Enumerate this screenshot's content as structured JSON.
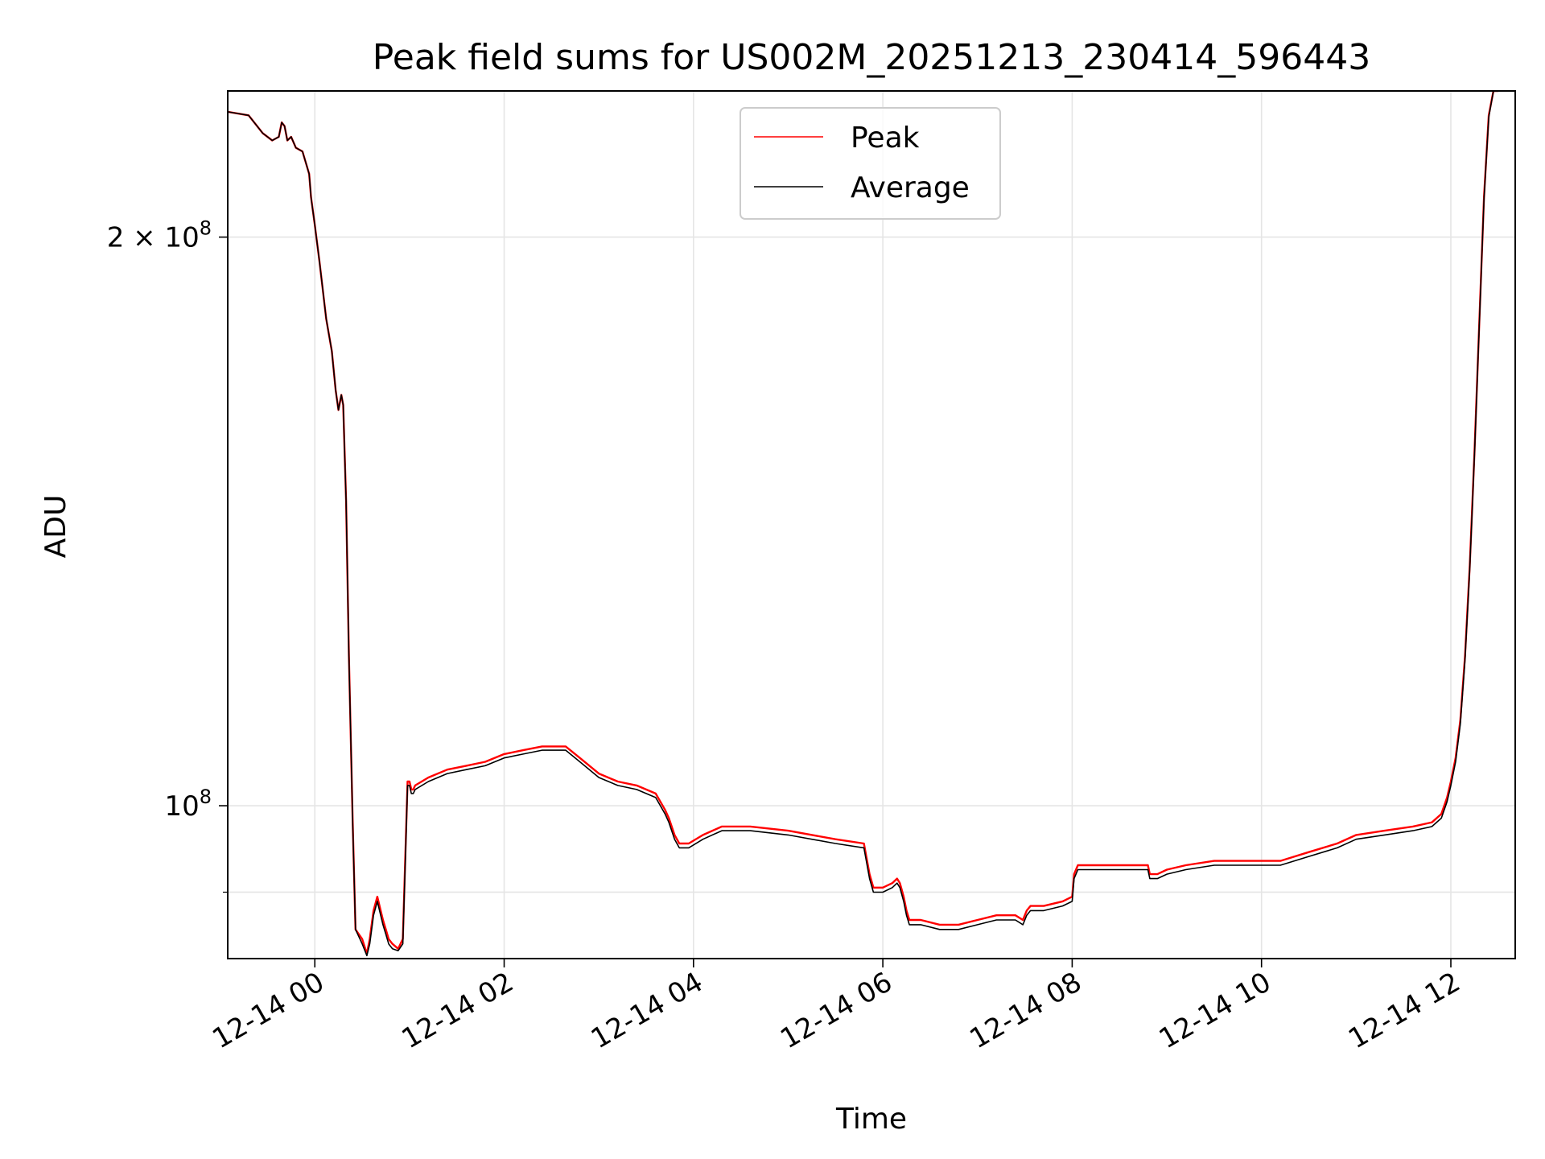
{
  "chart_data": {
    "type": "line",
    "title": "Peak field sums for US002M_20251213_230414_596443",
    "xlabel": "Time",
    "ylabel": "ADU",
    "yscale": "log",
    "ylim": [
      83000000,
      239000000
    ],
    "xlim": [
      -0.92,
      12.68
    ],
    "grid": true,
    "legend_position": "top-center",
    "x_tick_values": [
      0,
      2,
      4,
      6,
      8,
      10,
      12
    ],
    "x_tick_labels": [
      "12-14 00",
      "12-14 02",
      "12-14 04",
      "12-14 06",
      "12-14 08",
      "12-14 10",
      "12-14 12"
    ],
    "y_major_ticks": [
      {
        "value": 200000000,
        "mantissa": "2",
        "exponent": "8"
      },
      {
        "value": 100000000,
        "mantissa": "",
        "exponent": "8"
      }
    ],
    "y_minor_ticks": [
      90000000
    ],
    "x_unit": "hours since 12-14 00:00",
    "series": [
      {
        "name": "Peak",
        "color": "#ff0000",
        "x": [
          -0.92,
          -0.7,
          -0.55,
          -0.45,
          -0.38,
          -0.35,
          -0.32,
          -0.29,
          -0.25,
          -0.2,
          -0.13,
          -0.06,
          -0.04,
          0.0,
          0.05,
          0.12,
          0.18,
          0.22,
          0.25,
          0.28,
          0.3,
          0.33,
          0.36,
          0.4,
          0.43,
          0.5,
          0.55,
          0.58,
          0.62,
          0.66,
          0.72,
          0.75,
          0.78,
          0.82,
          0.88,
          0.93,
          0.98,
          1.0,
          1.02,
          1.04,
          1.06,
          1.2,
          1.4,
          1.6,
          1.8,
          2.0,
          2.2,
          2.4,
          2.6,
          2.65,
          2.8,
          3.0,
          3.2,
          3.4,
          3.6,
          3.7,
          3.74,
          3.8,
          3.85,
          3.95,
          4.1,
          4.3,
          4.6,
          5.0,
          5.5,
          5.8,
          5.86,
          5.9,
          6.0,
          6.1,
          6.15,
          6.18,
          6.22,
          6.25,
          6.28,
          6.4,
          6.6,
          6.8,
          7.0,
          7.2,
          7.4,
          7.48,
          7.52,
          7.56,
          7.7,
          7.9,
          8.0,
          8.02,
          8.06,
          8.2,
          8.5,
          8.8,
          8.82,
          8.9,
          9.0,
          9.2,
          9.5,
          9.8,
          10.0,
          10.2,
          10.5,
          10.8,
          11.0,
          11.3,
          11.6,
          11.8,
          11.9,
          11.96,
          12.0,
          12.05,
          12.1,
          12.15,
          12.2,
          12.25,
          12.3,
          12.35,
          12.4,
          12.45,
          12.5
        ],
        "y": [
          233000000,
          232000000,
          227000000,
          225000000,
          226000000,
          230000000,
          229000000,
          225000000,
          226000000,
          223000000,
          222000000,
          216000000,
          210000000,
          203000000,
          194000000,
          181000000,
          174000000,
          166000000,
          162000000,
          165000000,
          163000000,
          145000000,
          120000000,
          98000000,
          86000000,
          85000000,
          83500000,
          85000000,
          88000000,
          89500000,
          87000000,
          86000000,
          85000000,
          84500000,
          84000000,
          85000000,
          103000000,
          103000000,
          102000000,
          102000000,
          102500000,
          103500000,
          104500000,
          105000000,
          105500000,
          106500000,
          107000000,
          107500000,
          107500000,
          107500000,
          106000000,
          104000000,
          103000000,
          102500000,
          101500000,
          99500000,
          98500000,
          96500000,
          95500000,
          95500000,
          96500000,
          97500000,
          97500000,
          97000000,
          96000000,
          95500000,
          92000000,
          90500000,
          90500000,
          91000000,
          91500000,
          91000000,
          89500000,
          88000000,
          87000000,
          87000000,
          86500000,
          86500000,
          87000000,
          87500000,
          87500000,
          87000000,
          88000000,
          88500000,
          88500000,
          89000000,
          89500000,
          92000000,
          93000000,
          93000000,
          93000000,
          93000000,
          92000000,
          92000000,
          92500000,
          93000000,
          93500000,
          93500000,
          93500000,
          93500000,
          94500000,
          95500000,
          96500000,
          97000000,
          97500000,
          98000000,
          99000000,
          101000000,
          103000000,
          106000000,
          111000000,
          120000000,
          134000000,
          154000000,
          180000000,
          210000000,
          232000000,
          239000000,
          239000000
        ]
      },
      {
        "name": "Average",
        "color": "#000000",
        "x": [
          -0.92,
          -0.7,
          -0.55,
          -0.45,
          -0.38,
          -0.35,
          -0.32,
          -0.29,
          -0.25,
          -0.2,
          -0.13,
          -0.06,
          -0.04,
          0.0,
          0.05,
          0.12,
          0.18,
          0.22,
          0.25,
          0.28,
          0.3,
          0.33,
          0.36,
          0.4,
          0.43,
          0.5,
          0.55,
          0.58,
          0.62,
          0.66,
          0.72,
          0.75,
          0.78,
          0.82,
          0.88,
          0.93,
          0.98,
          1.0,
          1.02,
          1.04,
          1.06,
          1.2,
          1.4,
          1.6,
          1.8,
          2.0,
          2.2,
          2.4,
          2.6,
          2.65,
          2.8,
          3.0,
          3.2,
          3.4,
          3.6,
          3.7,
          3.74,
          3.8,
          3.85,
          3.95,
          4.1,
          4.3,
          4.6,
          5.0,
          5.5,
          5.8,
          5.86,
          5.9,
          6.0,
          6.1,
          6.15,
          6.18,
          6.22,
          6.25,
          6.28,
          6.4,
          6.6,
          6.8,
          7.0,
          7.2,
          7.4,
          7.48,
          7.52,
          7.56,
          7.7,
          7.9,
          8.0,
          8.02,
          8.06,
          8.2,
          8.5,
          8.8,
          8.82,
          8.9,
          9.0,
          9.2,
          9.5,
          9.8,
          10.0,
          10.2,
          10.5,
          10.8,
          11.0,
          11.3,
          11.6,
          11.8,
          11.9,
          11.96,
          12.0,
          12.05,
          12.1,
          12.15,
          12.2,
          12.25,
          12.3,
          12.35,
          12.4,
          12.45,
          12.5
        ],
        "y": [
          233000000,
          232000000,
          227000000,
          225000000,
          226000000,
          230000000,
          229000000,
          225000000,
          226000000,
          223000000,
          222000000,
          216000000,
          210000000,
          203000000,
          194000000,
          181000000,
          174000000,
          166000000,
          162000000,
          165000000,
          163000000,
          145000000,
          120000000,
          98000000,
          86000000,
          84500000,
          83300000,
          84500000,
          87500000,
          89000000,
          86500000,
          85500000,
          84500000,
          84000000,
          83800000,
          84500000,
          102500000,
          102500000,
          101500000,
          101500000,
          102000000,
          103000000,
          104000000,
          104500000,
          105000000,
          106000000,
          106500000,
          107000000,
          107000000,
          107000000,
          105500000,
          103500000,
          102500000,
          102000000,
          101000000,
          99000000,
          98000000,
          96000000,
          95000000,
          95000000,
          96000000,
          97000000,
          97000000,
          96500000,
          95500000,
          95000000,
          91500000,
          90000000,
          90000000,
          90500000,
          91000000,
          90500000,
          89000000,
          87500000,
          86500000,
          86500000,
          86000000,
          86000000,
          86500000,
          87000000,
          87000000,
          86500000,
          87500000,
          88000000,
          88000000,
          88500000,
          89000000,
          91500000,
          92500000,
          92500000,
          92500000,
          92500000,
          91500000,
          91500000,
          92000000,
          92500000,
          93000000,
          93000000,
          93000000,
          93000000,
          94000000,
          95000000,
          96000000,
          96500000,
          97000000,
          97500000,
          98500000,
          100500000,
          102500000,
          105500000,
          110500000,
          119500000,
          133500000,
          153500000,
          179500000,
          209500000,
          231500000,
          239000000,
          239000000
        ]
      }
    ]
  }
}
